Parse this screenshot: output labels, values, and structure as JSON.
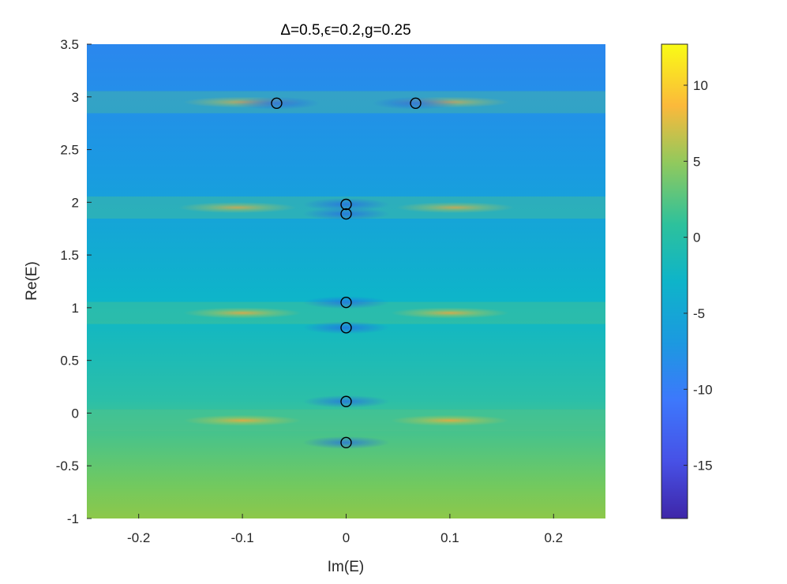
{
  "chart_data": {
    "type": "heatmap",
    "title": "Δ=0.5,ϵ=0.2,g=0.25",
    "xlabel": "Im(E)",
    "ylabel": "Re(E)",
    "xlim": [
      -0.25,
      0.25
    ],
    "ylim": [
      -1,
      3.5
    ],
    "xticks": [
      -0.2,
      -0.1,
      0,
      0.1,
      0.2
    ],
    "xtick_labels": [
      "-0.2",
      "-0.1",
      "0",
      "0.1",
      "0.2"
    ],
    "yticks": [
      -1,
      -0.5,
      0,
      0.5,
      1,
      1.5,
      2,
      2.5,
      3,
      3.5
    ],
    "ytick_labels": [
      "-1",
      "-0.5",
      "0",
      "0.5",
      "1",
      "1.5",
      "2",
      "2.5",
      "3",
      "3.5"
    ],
    "colorbar": {
      "lim": [
        -18.5,
        12.7
      ],
      "ticks": [
        -15,
        -10,
        -5,
        0,
        5,
        10
      ],
      "tick_labels": [
        "-15",
        "-10",
        "-5",
        "0",
        "5",
        "10"
      ],
      "colormap": "parula"
    },
    "features": [
      {
        "re": 2.95,
        "im": 0.1,
        "value": 0.5
      },
      {
        "re": 1.95,
        "im": 0.105,
        "value": 2
      },
      {
        "re": 0.95,
        "im": 0.1,
        "value": 6
      },
      {
        "re": -0.07,
        "im": 0.1,
        "value": 8
      }
    ],
    "eigenvalues": [
      {
        "im": -0.067,
        "re": 2.94
      },
      {
        "im": 0.067,
        "re": 2.94
      },
      {
        "im": 0,
        "re": 1.98
      },
      {
        "im": 0,
        "re": 1.89
      },
      {
        "im": 0,
        "re": 1.05
      },
      {
        "im": 0,
        "re": 0.81
      },
      {
        "im": 0,
        "re": 0.11
      },
      {
        "im": 0,
        "re": -0.28
      }
    ]
  }
}
